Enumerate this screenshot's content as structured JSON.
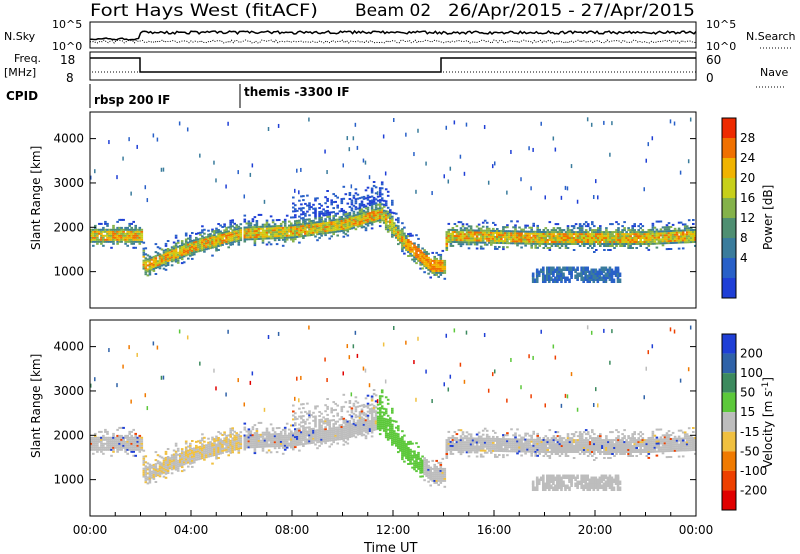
{
  "header": {
    "station": "Fort Hays West (fitACF)",
    "beam": "Beam 02",
    "date_range": "26/Apr/2015 - 27/Apr/2015"
  },
  "top_panels": {
    "nsky_label": "N.Sky",
    "nsky_ticks": [
      "10^5",
      "10^0"
    ],
    "nsearch_label": "N.Search",
    "nsearch_ticks": [
      "10^5",
      "10^0"
    ],
    "freq_label": "Freq.",
    "freq_unit": "[MHz]",
    "freq_ticks": [
      "18",
      "8"
    ],
    "nave_label": "Nave",
    "nave_ticks": [
      "60",
      "0"
    ],
    "cpid_label": "CPID",
    "cpid_modes": [
      {
        "label": "rbsp 200 IF",
        "start_hour": 0
      },
      {
        "label": "themis -3300 IF",
        "start_hour": 6
      }
    ]
  },
  "chart_data": [
    {
      "type": "heatmap",
      "name": "power",
      "xlabel": "",
      "ylabel": "Slant Range [km]",
      "xlim": [
        0,
        24
      ],
      "ylim": [
        180,
        4600
      ],
      "yticks": [
        1000,
        2000,
        3000,
        4000
      ],
      "colorbar": {
        "label": "Power [dB]",
        "ticks": [
          4,
          8,
          12,
          16,
          20,
          24,
          28
        ],
        "colors": [
          "#1f3fd6",
          "#2860c8",
          "#3a7c9c",
          "#4f8f72",
          "#84b24a",
          "#c7cf1a",
          "#f0b300",
          "#f07000",
          "#ee2a00"
        ]
      },
      "echo_band": [
        {
          "x": 0.0,
          "y": 1800
        },
        {
          "x": 2.0,
          "y": 1800
        },
        {
          "x": 2.1,
          "y": 1100
        },
        {
          "x": 4.0,
          "y": 1550
        },
        {
          "x": 6.0,
          "y": 1850
        },
        {
          "x": 8.0,
          "y": 1900
        },
        {
          "x": 10.0,
          "y": 2050
        },
        {
          "x": 11.5,
          "y": 2300
        },
        {
          "x": 12.5,
          "y": 1600
        },
        {
          "x": 13.5,
          "y": 1100
        },
        {
          "x": 14.0,
          "y": 1100
        },
        {
          "x": 14.1,
          "y": 1800
        },
        {
          "x": 18.0,
          "y": 1750
        },
        {
          "x": 22.0,
          "y": 1750
        },
        {
          "x": 24.0,
          "y": 1800
        }
      ]
    },
    {
      "type": "heatmap",
      "name": "velocity",
      "xlabel": "Time UT",
      "ylabel": "Slant Range [km]",
      "xlim": [
        0,
        24
      ],
      "ylim": [
        180,
        4600
      ],
      "yticks": [
        1000,
        2000,
        3000,
        4000
      ],
      "xticks": [
        "00:00",
        "04:00",
        "08:00",
        "12:00",
        "16:00",
        "20:00",
        "00:00"
      ],
      "colorbar": {
        "label": "Velocity [m s^-1]",
        "ticks": [
          200,
          100,
          50,
          15,
          -15,
          -50,
          -100,
          -200
        ],
        "colors": [
          "#1f3fd6",
          "#2f62a8",
          "#3c8a5e",
          "#5cc83a",
          "#bdbdbd",
          "#f0c040",
          "#f07a00",
          "#ee4000",
          "#e00000"
        ]
      }
    }
  ]
}
